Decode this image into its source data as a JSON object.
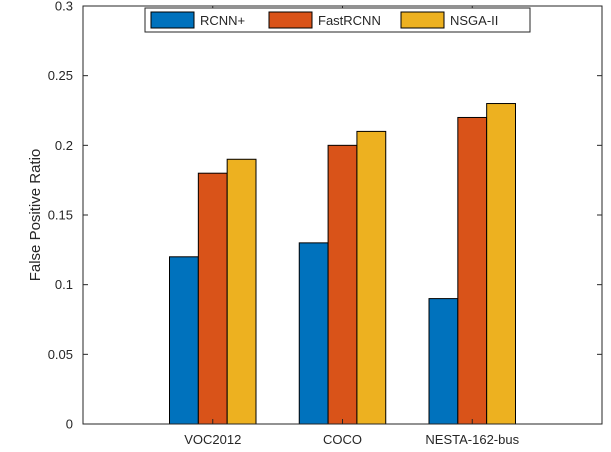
{
  "chart_data": {
    "type": "bar",
    "categories": [
      "VOC2012",
      "COCO",
      "NESTA-162-bus"
    ],
    "series": [
      {
        "name": "RCNN+",
        "color": "#0072BD",
        "values": [
          0.12,
          0.13,
          0.09
        ]
      },
      {
        "name": "FastRCNN",
        "color": "#D95319",
        "values": [
          0.18,
          0.2,
          0.22
        ]
      },
      {
        "name": "NSGA-II",
        "color": "#EDB120",
        "values": [
          0.19,
          0.21,
          0.23
        ]
      }
    ],
    "ylabel": "False Positive Ratio",
    "xlabel": "",
    "ylim": [
      0,
      0.3
    ],
    "yticks": [
      "0",
      "0.05",
      "0.1",
      "0.15",
      "0.2",
      "0.25",
      "0.3"
    ],
    "xlim": [
      0,
      4
    ],
    "grid": false,
    "legend_position": "top-center",
    "legend_orientation": "horizontal"
  }
}
